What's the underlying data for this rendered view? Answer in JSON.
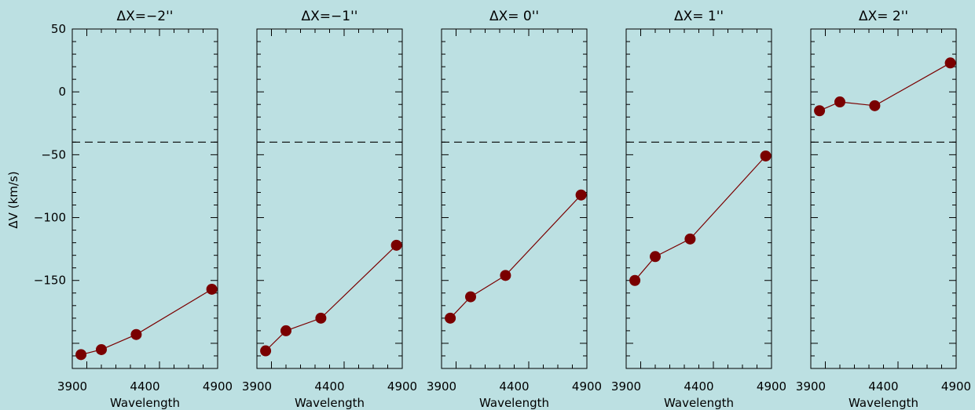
{
  "figure": {
    "ylabel": "ΔV  (km/s)",
    "background": "#bce0e2",
    "marker_color": "#7a0000",
    "line_color": "#7a0000"
  },
  "chart_data": [
    {
      "type": "line",
      "title": "ΔX=−2''",
      "xlabel": "Wavelength",
      "ylabel": "ΔV  (km/s)",
      "xlim": [
        3900,
        4900
      ],
      "ylim": [
        -220,
        50
      ],
      "xticks": [
        "3900",
        "4400",
        "4900"
      ],
      "yticks": [
        "50",
        "0",
        "−50",
        "−100",
        "−150"
      ],
      "ytick_values": [
        50,
        0,
        -50,
        -100,
        -150
      ],
      "reference_line": -40,
      "x": [
        3960,
        4100,
        4340,
        4860
      ],
      "y": [
        -209,
        -205,
        -193,
        -157
      ]
    },
    {
      "type": "line",
      "title": "ΔX=−1''",
      "xlabel": "Wavelength",
      "ylabel": "",
      "xlim": [
        3900,
        4900
      ],
      "ylim": [
        -220,
        50
      ],
      "xticks": [
        "3900",
        "4400",
        "4900"
      ],
      "yticks": [],
      "ytick_values": [
        50,
        0,
        -50,
        -100,
        -150
      ],
      "reference_line": -40,
      "x": [
        3960,
        4100,
        4340,
        4860
      ],
      "y": [
        -206,
        -190,
        -180,
        -122
      ]
    },
    {
      "type": "line",
      "title": "ΔX=  0''",
      "xlabel": "Wavelength",
      "ylabel": "",
      "xlim": [
        3900,
        4900
      ],
      "ylim": [
        -220,
        50
      ],
      "xticks": [
        "3900",
        "4400",
        "4900"
      ],
      "yticks": [],
      "ytick_values": [
        50,
        0,
        -50,
        -100,
        -150
      ],
      "reference_line": -40,
      "x": [
        3960,
        4100,
        4340,
        4860
      ],
      "y": [
        -180,
        -163,
        -146,
        -82
      ]
    },
    {
      "type": "line",
      "title": "ΔX=  1''",
      "xlabel": "Wavelength",
      "ylabel": "",
      "xlim": [
        3900,
        4900
      ],
      "ylim": [
        -220,
        50
      ],
      "xticks": [
        "3900",
        "4400",
        "4900"
      ],
      "yticks": [],
      "ytick_values": [
        50,
        0,
        -50,
        -100,
        -150
      ],
      "reference_line": -40,
      "x": [
        3960,
        4100,
        4340,
        4860
      ],
      "y": [
        -150,
        -131,
        -117,
        -51
      ]
    },
    {
      "type": "line",
      "title": "ΔX=  2''",
      "xlabel": "Wavelength",
      "ylabel": "",
      "xlim": [
        3900,
        4900
      ],
      "ylim": [
        -220,
        50
      ],
      "xticks": [
        "3900",
        "4400",
        "4900"
      ],
      "yticks": [],
      "ytick_values": [
        50,
        0,
        -50,
        -100,
        -150
      ],
      "reference_line": -40,
      "x": [
        3960,
        4100,
        4340,
        4860
      ],
      "y": [
        -15,
        -8,
        -11,
        23
      ]
    }
  ]
}
